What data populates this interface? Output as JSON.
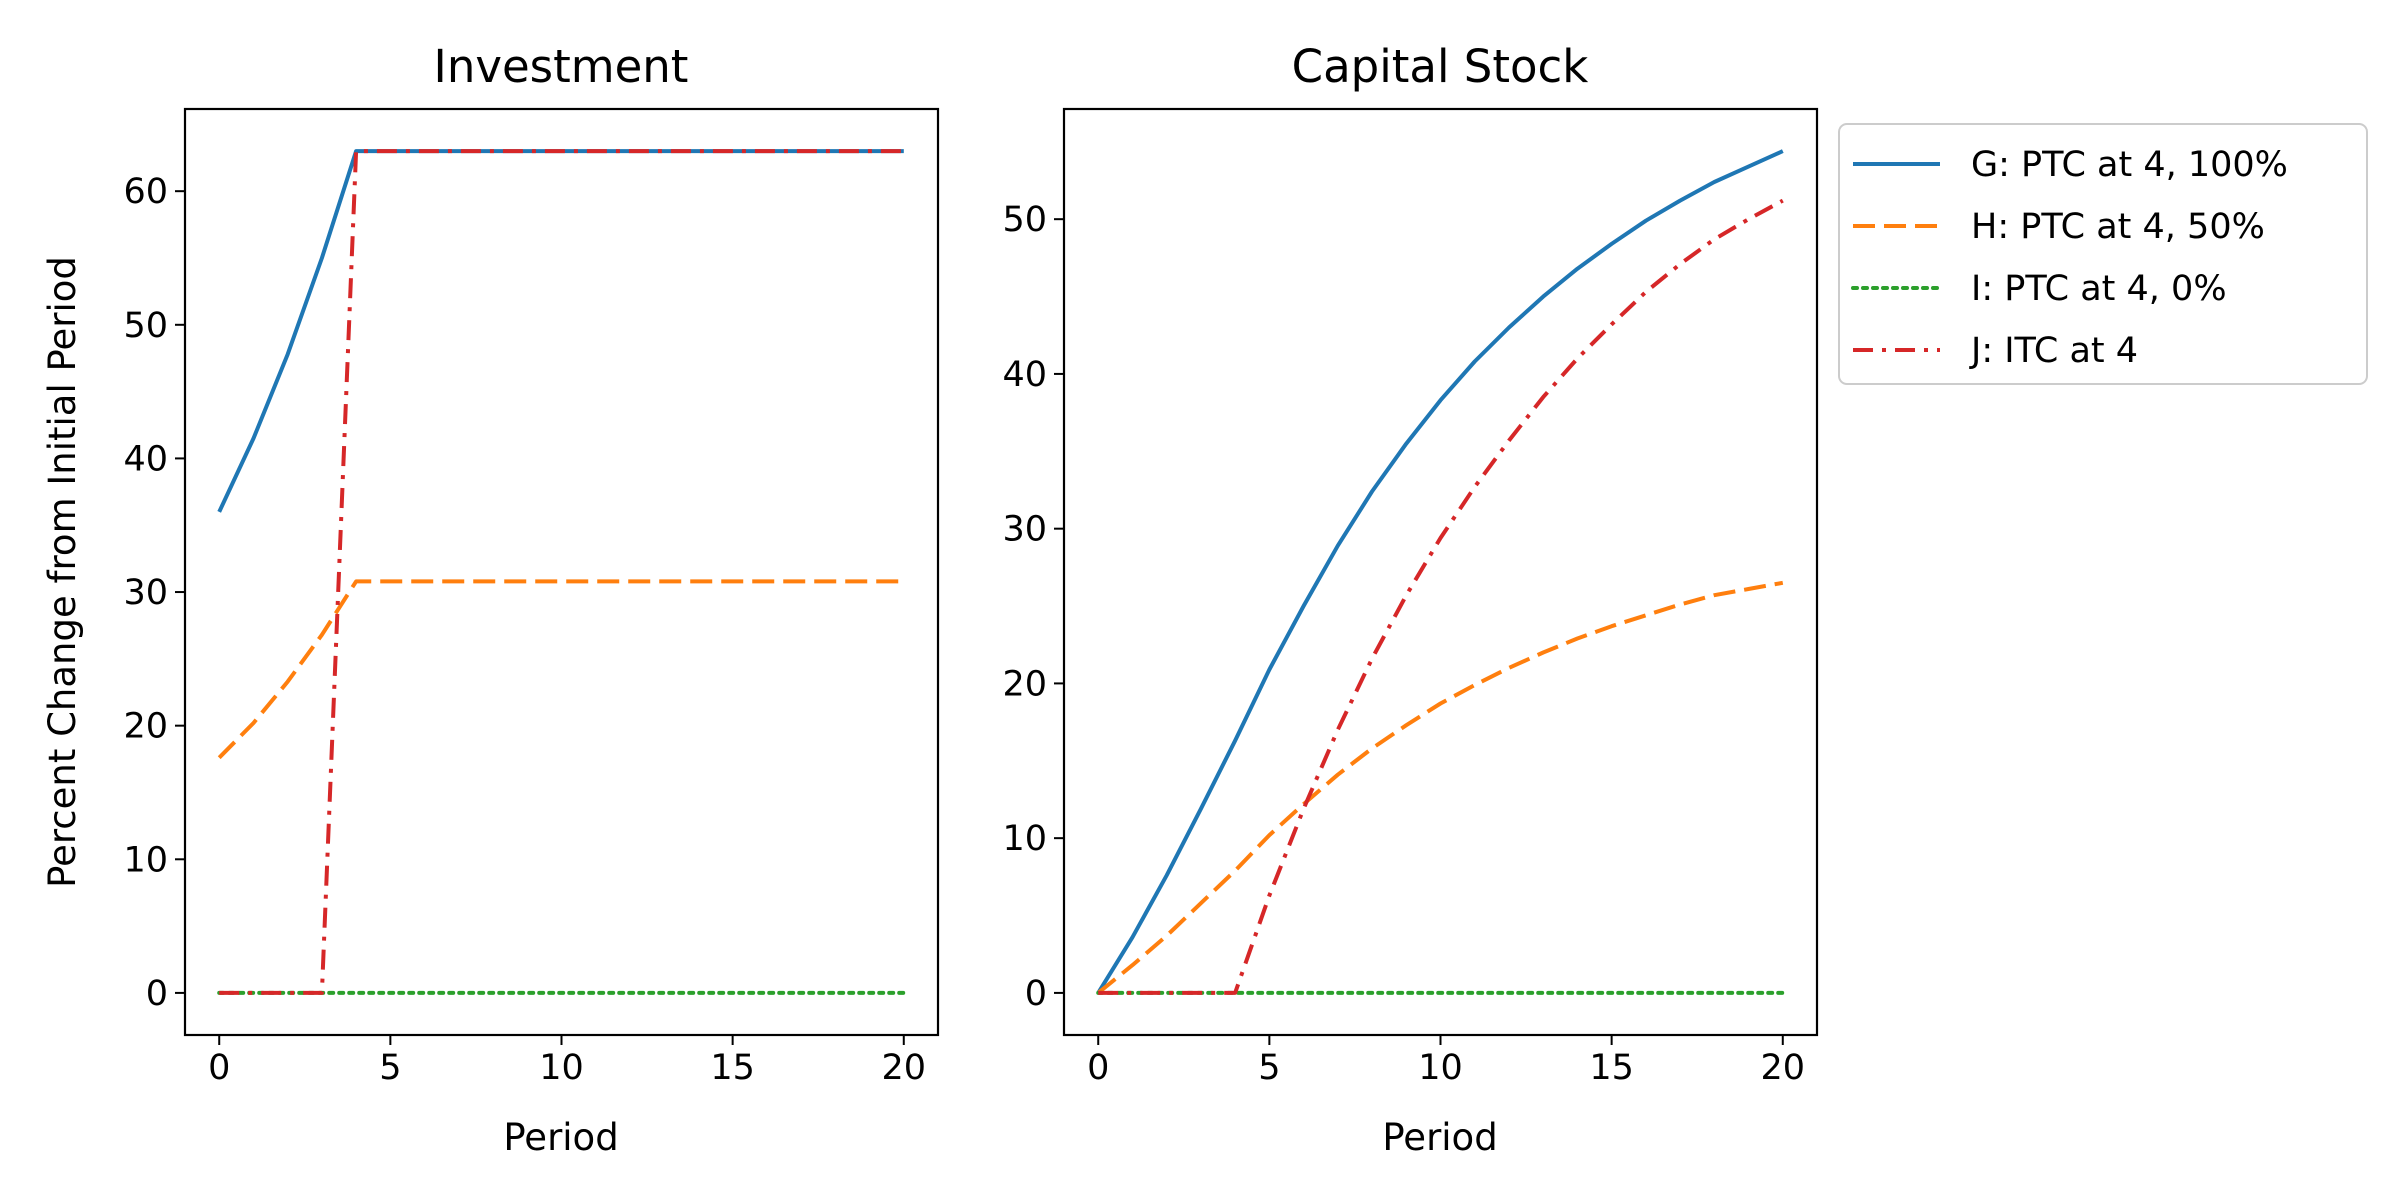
{
  "chart_data": [
    {
      "type": "line",
      "title": "Investment",
      "xlabel": "Period",
      "ylabel": "Percent Change from Initial Period",
      "xlim": [
        -1,
        21
      ],
      "ylim": [
        -3.15,
        66.15
      ],
      "xticks": [
        0,
        5,
        10,
        15,
        20
      ],
      "yticks": [
        0,
        10,
        20,
        30,
        40,
        50,
        60
      ],
      "grid": false,
      "x": [
        0,
        1,
        2,
        3,
        4,
        5,
        6,
        7,
        8,
        9,
        10,
        11,
        12,
        13,
        14,
        15,
        16,
        17,
        18,
        19,
        20
      ],
      "series": [
        {
          "name": "G: PTC at 4, 100%",
          "color": "#1f77b4",
          "style": "solid",
          "values": [
            36.0,
            41.5,
            47.8,
            55.0,
            63.0,
            63.0,
            63.0,
            63.0,
            63.0,
            63.0,
            63.0,
            63.0,
            63.0,
            63.0,
            63.0,
            63.0,
            63.0,
            63.0,
            63.0,
            63.0,
            63.0
          ]
        },
        {
          "name": "H: PTC at 4, 50%",
          "color": "#ff7f0e",
          "style": "dashed",
          "values": [
            17.6,
            20.2,
            23.3,
            26.8,
            30.8,
            30.8,
            30.8,
            30.8,
            30.8,
            30.8,
            30.8,
            30.8,
            30.8,
            30.8,
            30.8,
            30.8,
            30.8,
            30.8,
            30.8,
            30.8,
            30.8
          ]
        },
        {
          "name": "I: PTC at 4, 0%",
          "color": "#2ca02c",
          "style": "dotted",
          "values": [
            0,
            0,
            0,
            0,
            0,
            0,
            0,
            0,
            0,
            0,
            0,
            0,
            0,
            0,
            0,
            0,
            0,
            0,
            0,
            0,
            0
          ]
        },
        {
          "name": "J: ITC at 4",
          "color": "#d62728",
          "style": "dashdot",
          "values": [
            0,
            0,
            0,
            0,
            63.0,
            63.0,
            63.0,
            63.0,
            63.0,
            63.0,
            63.0,
            63.0,
            63.0,
            63.0,
            63.0,
            63.0,
            63.0,
            63.0,
            63.0,
            63.0,
            63.0
          ]
        }
      ]
    },
    {
      "type": "line",
      "title": "Capital Stock",
      "xlabel": "Period",
      "ylabel": "",
      "xlim": [
        -1,
        21
      ],
      "ylim": [
        -2.72,
        57.12
      ],
      "xticks": [
        0,
        5,
        10,
        15,
        20
      ],
      "yticks": [
        0,
        10,
        20,
        30,
        40,
        50
      ],
      "grid": false,
      "x": [
        0,
        1,
        2,
        3,
        4,
        5,
        6,
        7,
        8,
        9,
        10,
        11,
        12,
        13,
        14,
        15,
        16,
        17,
        18,
        19,
        20
      ],
      "series": [
        {
          "name": "G: PTC at 4, 100%",
          "color": "#1f77b4",
          "style": "solid",
          "values": [
            0,
            3.6,
            7.6,
            11.9,
            16.3,
            20.9,
            25.0,
            28.9,
            32.4,
            35.5,
            38.3,
            40.8,
            43.0,
            45.0,
            46.8,
            48.4,
            49.9,
            51.2,
            52.4,
            53.4,
            54.4
          ]
        },
        {
          "name": "H: PTC at 4, 50%",
          "color": "#ff7f0e",
          "style": "dashed",
          "values": [
            0,
            1.8,
            3.7,
            5.8,
            7.9,
            10.2,
            12.2,
            14.1,
            15.8,
            17.3,
            18.7,
            19.9,
            21.0,
            22.0,
            22.9,
            23.7,
            24.4,
            25.1,
            25.7,
            26.1,
            26.5
          ]
        },
        {
          "name": "I: PTC at 4, 0%",
          "color": "#2ca02c",
          "style": "dotted",
          "values": [
            0,
            0,
            0,
            0,
            0,
            0,
            0,
            0,
            0,
            0,
            0,
            0,
            0,
            0,
            0,
            0,
            0,
            0,
            0,
            0,
            0
          ]
        },
        {
          "name": "J: ITC at 4",
          "color": "#d62728",
          "style": "dashdot",
          "values": [
            0,
            0,
            0,
            0,
            0,
            6.3,
            11.9,
            17.0,
            21.6,
            25.7,
            29.4,
            32.7,
            35.7,
            38.5,
            41.0,
            43.2,
            45.3,
            47.1,
            48.7,
            50.0,
            51.2
          ]
        }
      ]
    }
  ],
  "legend": {
    "placement": "outside right of Capital Stock panel, top",
    "items": [
      {
        "label": "G: PTC at 4, 100%",
        "color": "#1f77b4",
        "style": "solid"
      },
      {
        "label": "H: PTC at 4, 50%",
        "color": "#ff7f0e",
        "style": "dashed"
      },
      {
        "label": "I: PTC at 4, 0%",
        "color": "#2ca02c",
        "style": "dotted"
      },
      {
        "label": "J: ITC at 4",
        "color": "#d62728",
        "style": "dashdot"
      }
    ]
  }
}
